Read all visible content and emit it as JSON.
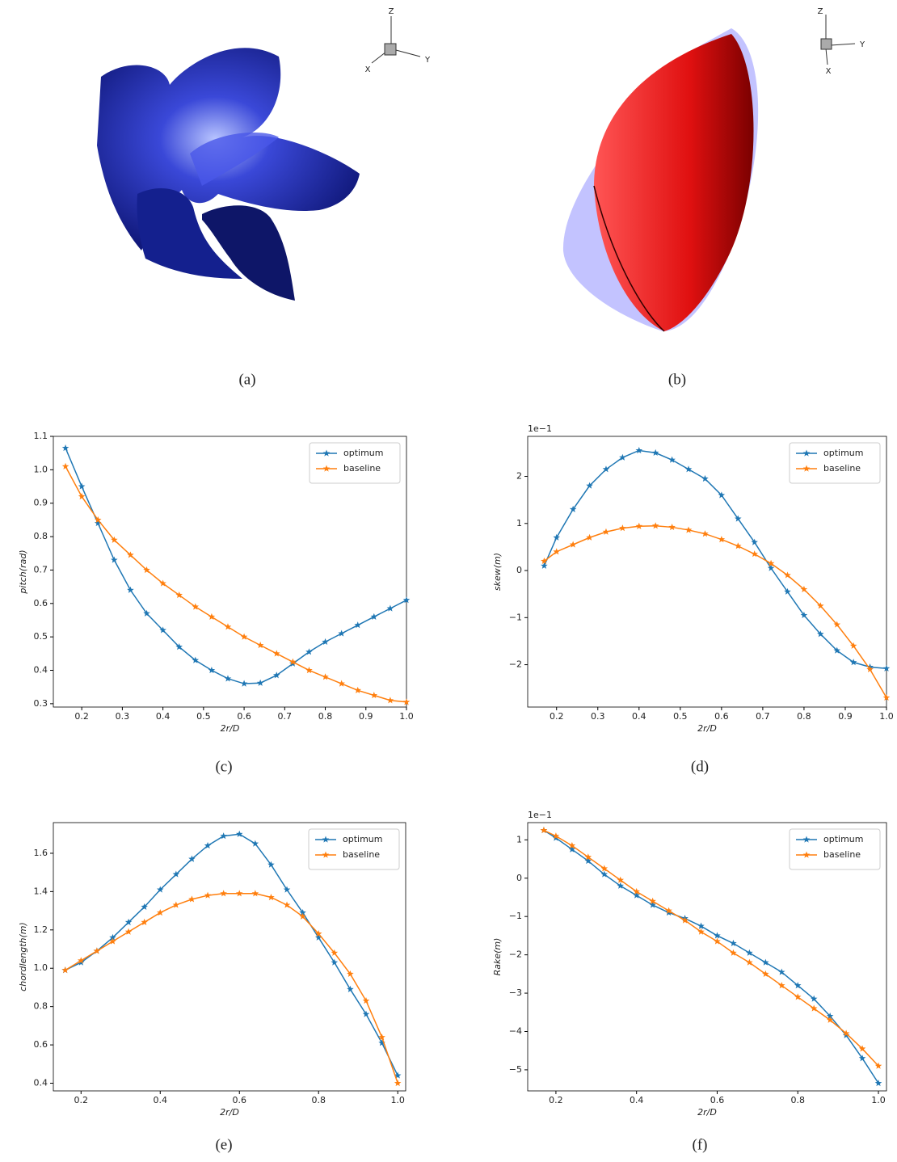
{
  "panels": [
    {
      "caption": "(a)",
      "axis_labels": [
        "Z",
        "X",
        "Y"
      ]
    },
    {
      "caption": "(b)",
      "axis_labels": [
        "Z",
        "Y",
        "X"
      ]
    }
  ],
  "chart_data": [
    {
      "type": "line",
      "caption": "(c)",
      "xlabel": "2r/D",
      "ylabel": "pitch(rad)",
      "x": [
        0.16,
        0.2,
        0.24,
        0.28,
        0.32,
        0.36,
        0.4,
        0.44,
        0.48,
        0.52,
        0.56,
        0.6,
        0.64,
        0.68,
        0.72,
        0.76,
        0.8,
        0.84,
        0.88,
        0.92,
        0.96,
        1.0
      ],
      "series": [
        {
          "name": "optimum",
          "color": "#1f77b4",
          "values": [
            1.065,
            0.95,
            0.84,
            0.73,
            0.64,
            0.57,
            0.52,
            0.47,
            0.43,
            0.4,
            0.375,
            0.36,
            0.362,
            0.385,
            0.42,
            0.455,
            0.485,
            0.51,
            0.535,
            0.56,
            0.585,
            0.61
          ]
        },
        {
          "name": "baseline",
          "color": "#ff7f0e",
          "values": [
            1.01,
            0.92,
            0.85,
            0.79,
            0.745,
            0.7,
            0.66,
            0.625,
            0.59,
            0.56,
            0.53,
            0.5,
            0.475,
            0.45,
            0.425,
            0.4,
            0.38,
            0.36,
            0.34,
            0.325,
            0.31,
            0.305
          ]
        }
      ],
      "xlim": [
        0.13,
        1.0
      ],
      "xticks": [
        0.2,
        0.3,
        0.4,
        0.5,
        0.6,
        0.7,
        0.8,
        0.9,
        {
          "value": 1,
          "label": "1.0"
        }
      ],
      "ylim": [
        0.29,
        1.1
      ],
      "yticks": [
        0.3,
        0.4,
        0.5,
        0.6,
        0.7,
        0.8,
        0.9,
        {
          "value": 1,
          "label": "1.0"
        },
        1.1
      ],
      "legend": "upper right"
    },
    {
      "type": "line",
      "caption": "(d)",
      "xlabel": "2r/D",
      "ylabel": "skew(m)",
      "offset_label": "1e−1",
      "x": [
        0.17,
        0.2,
        0.24,
        0.28,
        0.32,
        0.36,
        0.4,
        0.44,
        0.48,
        0.52,
        0.56,
        0.6,
        0.64,
        0.68,
        0.72,
        0.76,
        0.8,
        0.84,
        0.88,
        0.92,
        0.96,
        1.0
      ],
      "series": [
        {
          "name": "optimum",
          "color": "#1f77b4",
          "values": [
            0.1,
            0.7,
            1.3,
            1.8,
            2.15,
            2.4,
            2.55,
            2.5,
            2.35,
            2.15,
            1.95,
            1.6,
            1.1,
            0.6,
            0.05,
            -0.45,
            -0.95,
            -1.35,
            -1.7,
            -1.95,
            -2.05,
            -2.08
          ]
        },
        {
          "name": "baseline",
          "color": "#ff7f0e",
          "values": [
            0.2,
            0.4,
            0.55,
            0.7,
            0.82,
            0.9,
            0.94,
            0.95,
            0.92,
            0.86,
            0.78,
            0.66,
            0.52,
            0.35,
            0.15,
            -0.1,
            -0.4,
            -0.75,
            -1.15,
            -1.6,
            -2.1,
            -2.7
          ]
        }
      ],
      "xlim": [
        0.13,
        1.0
      ],
      "xticks": [
        0.2,
        0.3,
        0.4,
        0.5,
        0.6,
        0.7,
        0.8,
        0.9,
        {
          "value": 1,
          "label": "1.0"
        }
      ],
      "ylim": [
        -2.9,
        2.85
      ],
      "yticks": [
        {
          "value": -2,
          "label": "−2"
        },
        {
          "value": -1,
          "label": "−1"
        },
        0,
        1,
        2
      ],
      "legend": "upper right"
    },
    {
      "type": "line",
      "caption": "(e)",
      "xlabel": "2r/D",
      "ylabel": "chordlength(m)",
      "x": [
        0.16,
        0.2,
        0.24,
        0.28,
        0.32,
        0.36,
        0.4,
        0.44,
        0.48,
        0.52,
        0.56,
        0.6,
        0.64,
        0.68,
        0.72,
        0.76,
        0.8,
        0.84,
        0.88,
        0.92,
        0.96,
        1.0
      ],
      "series": [
        {
          "name": "optimum",
          "color": "#1f77b4",
          "values": [
            0.99,
            1.03,
            1.09,
            1.16,
            1.24,
            1.32,
            1.41,
            1.49,
            1.57,
            1.64,
            1.69,
            1.7,
            1.65,
            1.54,
            1.41,
            1.29,
            1.16,
            1.03,
            0.89,
            0.76,
            0.61,
            0.44
          ]
        },
        {
          "name": "baseline",
          "color": "#ff7f0e",
          "values": [
            0.99,
            1.04,
            1.09,
            1.14,
            1.19,
            1.24,
            1.29,
            1.33,
            1.36,
            1.38,
            1.39,
            1.39,
            1.39,
            1.37,
            1.33,
            1.27,
            1.18,
            1.08,
            0.97,
            0.83,
            0.64,
            0.4
          ]
        }
      ],
      "xlim": [
        0.13,
        1.02
      ],
      "xticks": [
        0.2,
        0.4,
        0.6,
        0.8,
        {
          "value": 1,
          "label": "1.0"
        }
      ],
      "ylim": [
        0.36,
        1.76
      ],
      "yticks": [
        0.4,
        0.6,
        0.8,
        {
          "value": 1,
          "label": "1.0"
        },
        1.2,
        1.4,
        1.6
      ],
      "legend": "upper right"
    },
    {
      "type": "line",
      "caption": "(f)",
      "xlabel": "2r/D",
      "ylabel": "Rake(m)",
      "offset_label": "1e−1",
      "x": [
        0.17,
        0.2,
        0.24,
        0.28,
        0.32,
        0.36,
        0.4,
        0.44,
        0.48,
        0.52,
        0.56,
        0.6,
        0.64,
        0.68,
        0.72,
        0.76,
        0.8,
        0.84,
        0.88,
        0.92,
        0.96,
        1.0
      ],
      "series": [
        {
          "name": "optimum",
          "color": "#1f77b4",
          "values": [
            1.25,
            1.05,
            0.75,
            0.45,
            0.1,
            -0.2,
            -0.45,
            -0.7,
            -0.9,
            -1.05,
            -1.25,
            -1.5,
            -1.7,
            -1.95,
            -2.2,
            -2.45,
            -2.8,
            -3.15,
            -3.6,
            -4.1,
            -4.7,
            -5.35
          ]
        },
        {
          "name": "baseline",
          "color": "#ff7f0e",
          "values": [
            1.25,
            1.1,
            0.85,
            0.55,
            0.25,
            -0.05,
            -0.35,
            -0.6,
            -0.85,
            -1.1,
            -1.4,
            -1.65,
            -1.95,
            -2.2,
            -2.5,
            -2.8,
            -3.1,
            -3.4,
            -3.7,
            -4.05,
            -4.45,
            -4.9
          ]
        }
      ],
      "xlim": [
        0.13,
        1.02
      ],
      "xticks": [
        0.2,
        0.4,
        0.6,
        0.8,
        {
          "value": 1,
          "label": "1.0"
        }
      ],
      "ylim": [
        -5.55,
        1.45
      ],
      "yticks": [
        {
          "value": -5,
          "label": "−5"
        },
        {
          "value": -4,
          "label": "−4"
        },
        {
          "value": -3,
          "label": "−3"
        },
        {
          "value": -2,
          "label": "−2"
        },
        {
          "value": -1,
          "label": "−1"
        },
        0,
        1
      ],
      "legend": "upper right"
    }
  ]
}
